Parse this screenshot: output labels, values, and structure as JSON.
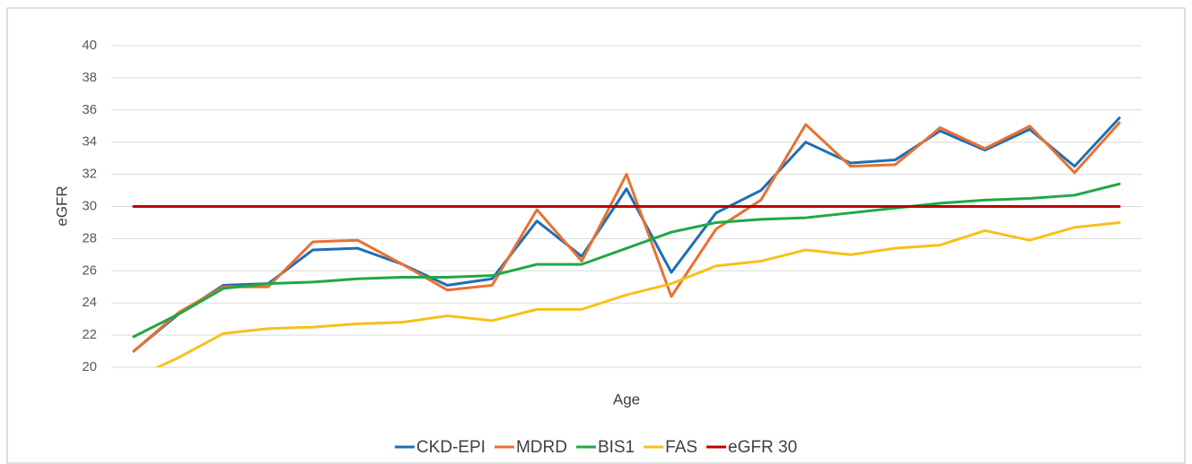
{
  "chart_data": {
    "type": "line",
    "x_label": "Age",
    "y_label": "eGFR",
    "categories": [
      null,
      null,
      null,
      null,
      null,
      null,
      null,
      null,
      null,
      null,
      null,
      null,
      null,
      null,
      null,
      null,
      null,
      null,
      null,
      null,
      null,
      null,
      null
    ],
    "series": [
      {
        "name": "CKD-EPI",
        "color": "#1f6eb4",
        "values": [
          21.0,
          23.3,
          25.1,
          25.2,
          27.3,
          27.4,
          26.4,
          25.1,
          25.5,
          29.1,
          26.9,
          31.1,
          25.9,
          29.6,
          31.0,
          34.0,
          32.7,
          32.9,
          34.7,
          33.5,
          34.8,
          32.5,
          35.5
        ]
      },
      {
        "name": "MDRD",
        "color": "#e97132",
        "values": [
          21.0,
          23.4,
          25.0,
          25.0,
          27.8,
          27.9,
          26.4,
          24.8,
          25.1,
          29.8,
          26.6,
          32.0,
          24.4,
          28.6,
          30.4,
          35.1,
          32.5,
          32.6,
          34.9,
          33.6,
          35.0,
          32.1,
          35.2
        ]
      },
      {
        "name": "BIS1",
        "color": "#20a845",
        "values": [
          21.9,
          23.3,
          24.9,
          25.2,
          25.3,
          25.5,
          25.6,
          25.6,
          25.7,
          26.4,
          26.4,
          27.4,
          28.4,
          29.0,
          29.2,
          29.3,
          29.6,
          29.9,
          30.2,
          30.4,
          30.5,
          30.7,
          31.4
        ]
      },
      {
        "name": "FAS",
        "color": "#f7c01a",
        "values": [
          19.3,
          20.6,
          22.1,
          22.4,
          22.5,
          22.7,
          22.8,
          23.2,
          22.9,
          23.6,
          23.6,
          24.5,
          25.2,
          26.3,
          26.6,
          27.3,
          27.0,
          27.4,
          27.6,
          28.5,
          27.9,
          28.7,
          29.0
        ]
      },
      {
        "name": "eGFR 30",
        "color": "#c00000",
        "values": [
          30,
          30,
          30,
          30,
          30,
          30,
          30,
          30,
          30,
          30,
          30,
          30,
          30,
          30,
          30,
          30,
          30,
          30,
          30,
          30,
          30,
          30,
          30
        ]
      }
    ],
    "ylim": [
      20,
      40
    ],
    "yticks": [
      20,
      22,
      24,
      26,
      28,
      30,
      32,
      34,
      36,
      38,
      40
    ],
    "grid": true,
    "legend": "bottom"
  }
}
